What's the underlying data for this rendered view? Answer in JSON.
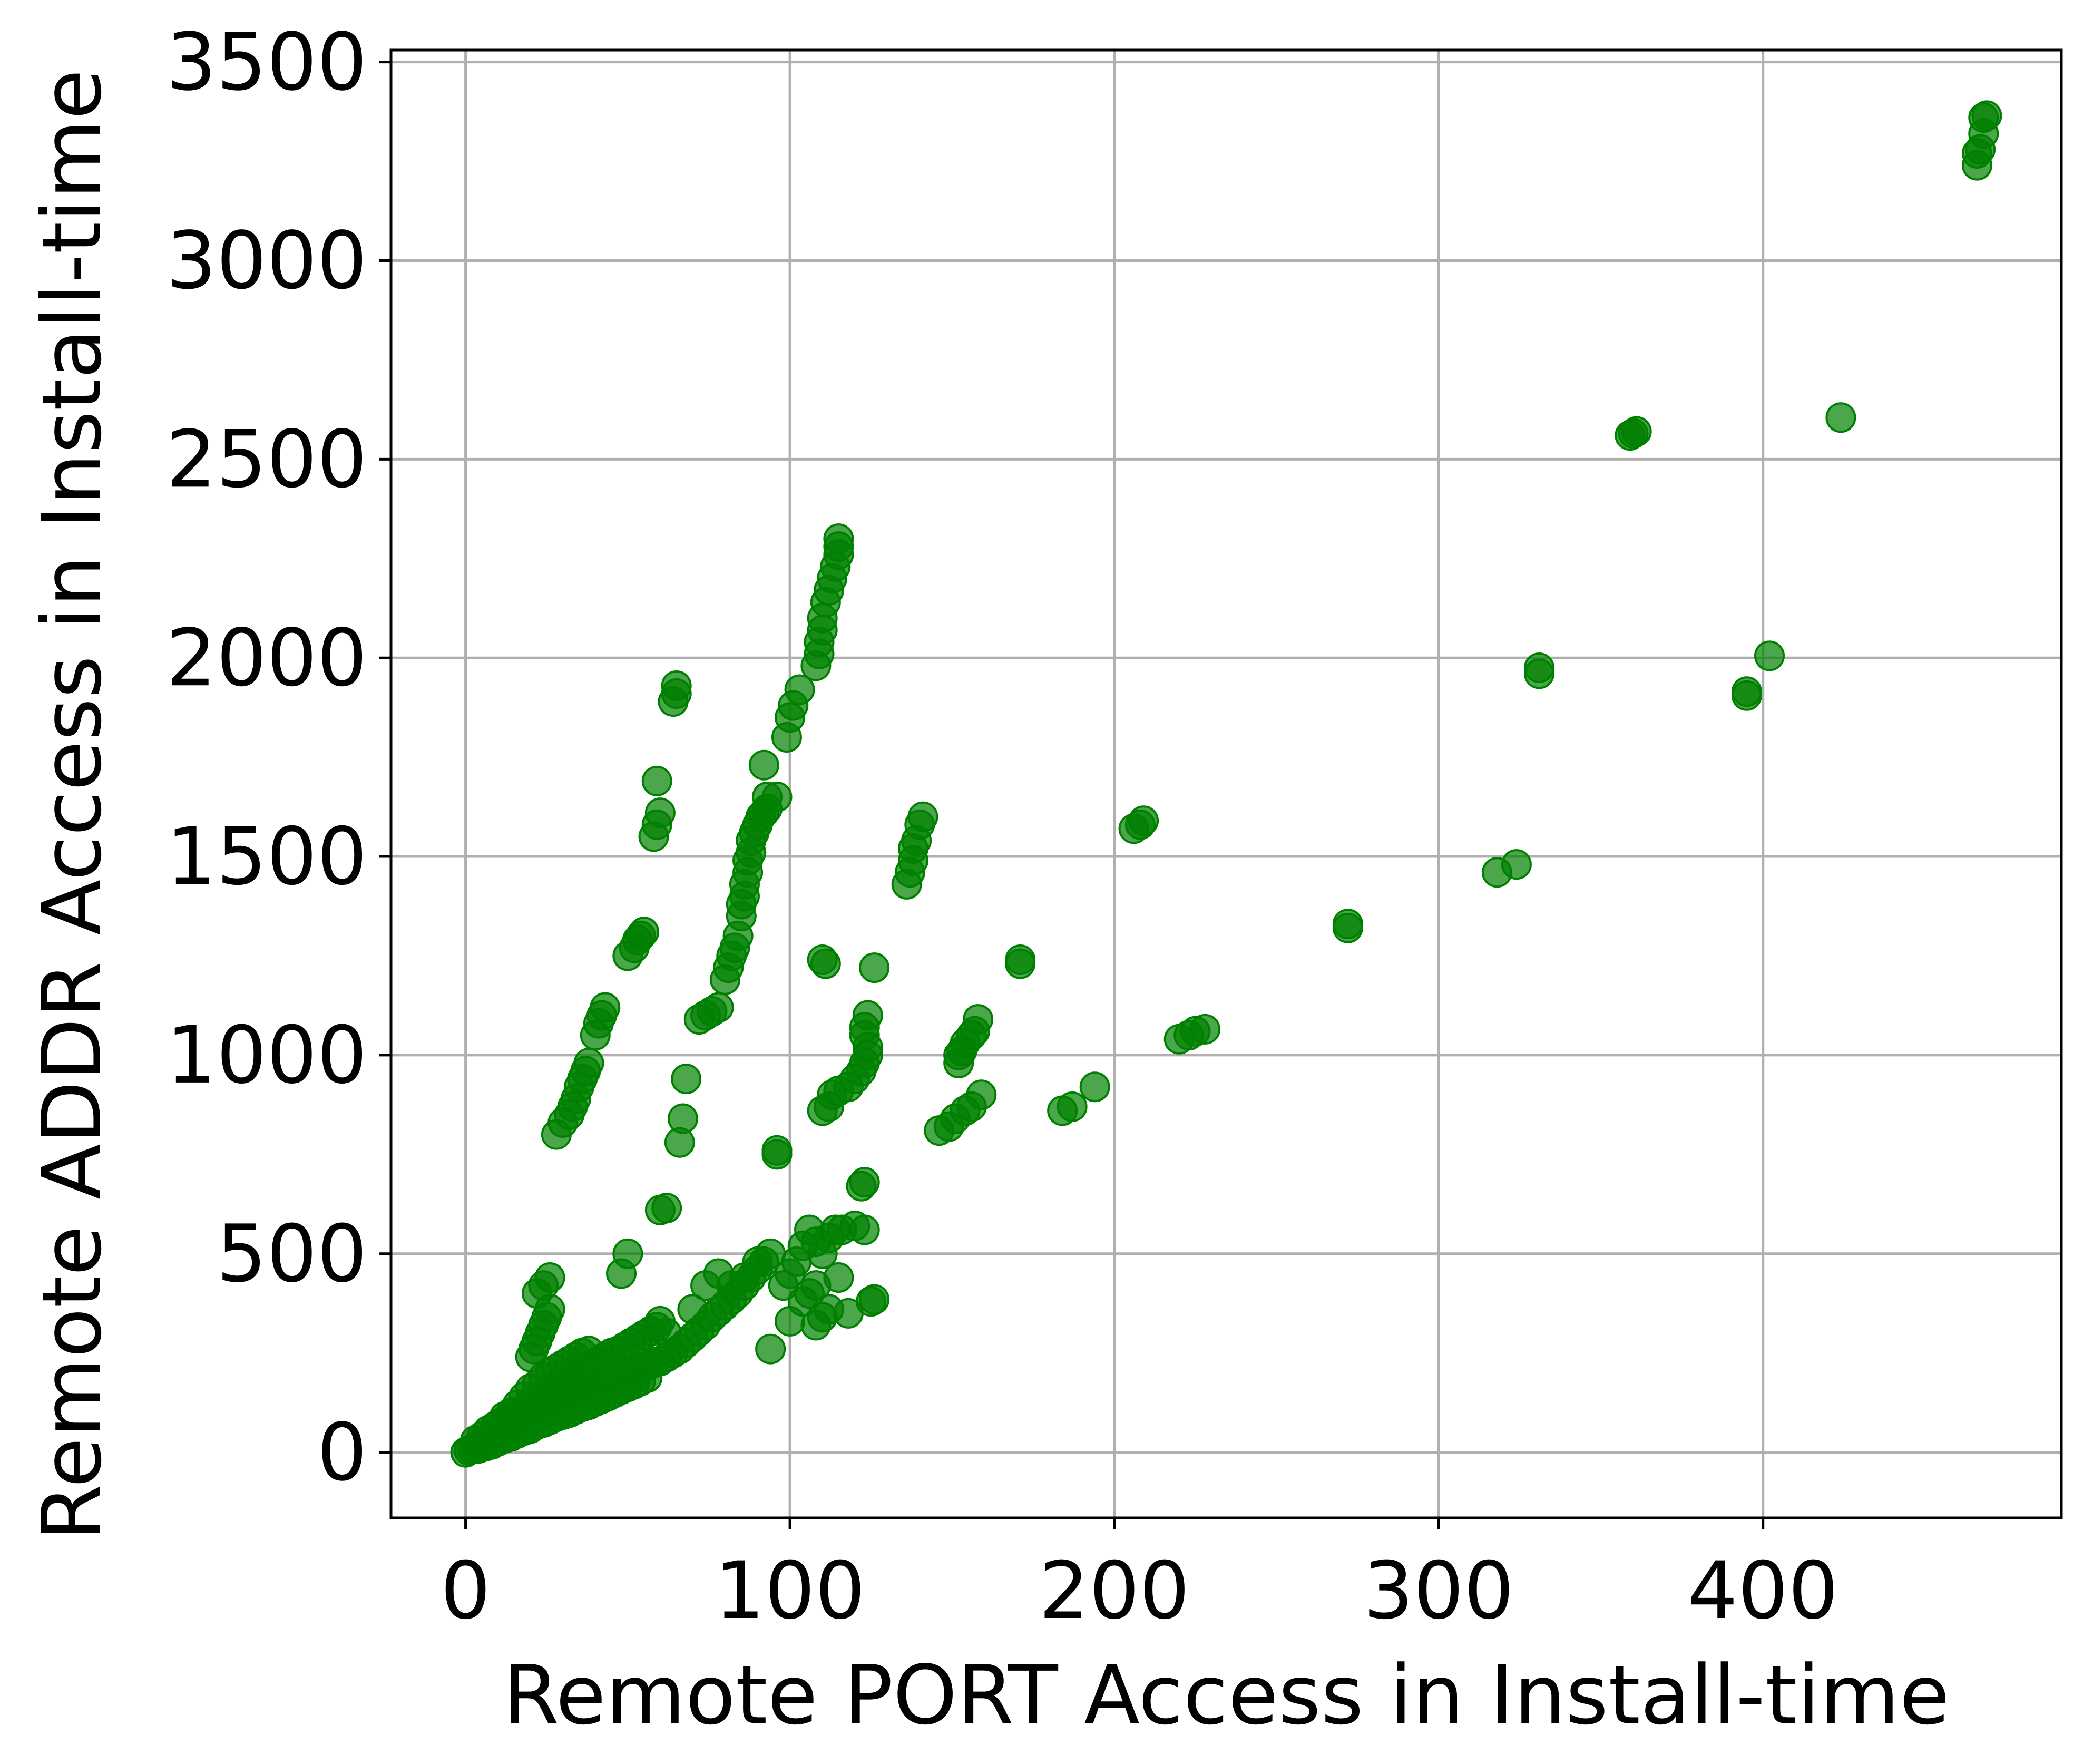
{
  "chart_data": {
    "type": "scatter",
    "title": "",
    "xlabel": "Remote PORT Access in Install-time",
    "ylabel": "Remote ADDR Access in Install-time",
    "xlim": [
      -23,
      492
    ],
    "ylim": [
      -165,
      3530
    ],
    "xticks": [
      0,
      100,
      200,
      300,
      400
    ],
    "yticks": [
      0,
      500,
      1000,
      1500,
      2000,
      2500,
      3000,
      3500
    ],
    "grid": true,
    "legend": "none",
    "marker_color": "#008000",
    "marker_opacity": 0.7,
    "series": [
      {
        "points": [
          [
            0,
            0
          ],
          [
            1,
            5
          ],
          [
            2,
            8
          ],
          [
            3,
            14
          ],
          [
            4,
            18
          ],
          [
            5,
            25
          ],
          [
            6,
            30
          ],
          [
            7,
            32
          ],
          [
            8,
            40
          ],
          [
            9,
            45
          ],
          [
            10,
            50
          ],
          [
            11,
            55
          ],
          [
            12,
            60
          ],
          [
            13,
            62
          ],
          [
            14,
            68
          ],
          [
            15,
            72
          ],
          [
            16,
            80
          ],
          [
            17,
            84
          ],
          [
            18,
            90
          ],
          [
            19,
            95
          ],
          [
            20,
            98
          ],
          [
            21,
            102
          ],
          [
            22,
            108
          ],
          [
            23,
            112
          ],
          [
            24,
            115
          ],
          [
            25,
            120
          ],
          [
            26,
            124
          ],
          [
            27,
            128
          ],
          [
            28,
            132
          ],
          [
            29,
            135
          ],
          [
            30,
            140
          ],
          [
            31,
            142
          ],
          [
            32,
            148
          ],
          [
            33,
            150
          ],
          [
            34,
            155
          ],
          [
            35,
            158
          ],
          [
            36,
            162
          ],
          [
            37,
            165
          ],
          [
            38,
            170
          ],
          [
            39,
            172
          ],
          [
            40,
            175
          ],
          [
            42,
            180
          ],
          [
            44,
            185
          ],
          [
            46,
            190
          ],
          [
            48,
            195
          ],
          [
            50,
            200
          ],
          [
            52,
            205
          ],
          [
            54,
            212
          ],
          [
            56,
            218
          ],
          [
            58,
            225
          ],
          [
            60,
            230
          ],
          [
            62,
            240
          ],
          [
            64,
            250
          ],
          [
            66,
            260
          ],
          [
            68,
            275
          ],
          [
            70,
            290
          ],
          [
            72,
            305
          ],
          [
            74,
            320
          ],
          [
            76,
            340
          ],
          [
            78,
            355
          ],
          [
            80,
            370
          ],
          [
            82,
            385
          ],
          [
            84,
            400
          ],
          [
            86,
            420
          ],
          [
            88,
            440
          ],
          [
            90,
            460
          ],
          [
            92,
            480
          ],
          [
            3,
            30
          ],
          [
            5,
            40
          ],
          [
            7,
            55
          ],
          [
            9,
            65
          ],
          [
            11,
            75
          ],
          [
            13,
            85
          ],
          [
            15,
            95
          ],
          [
            17,
            105
          ],
          [
            19,
            115
          ],
          [
            21,
            125
          ],
          [
            23,
            140
          ],
          [
            25,
            150
          ],
          [
            27,
            160
          ],
          [
            29,
            170
          ],
          [
            31,
            180
          ],
          [
            33,
            190
          ],
          [
            35,
            200
          ],
          [
            37,
            210
          ],
          [
            39,
            220
          ],
          [
            41,
            230
          ],
          [
            43,
            240
          ],
          [
            45,
            250
          ],
          [
            47,
            255
          ],
          [
            49,
            265
          ],
          [
            51,
            275
          ],
          [
            53,
            285
          ],
          [
            55,
            295
          ],
          [
            57,
            305
          ],
          [
            59,
            315
          ],
          [
            4,
            10
          ],
          [
            6,
            15
          ],
          [
            8,
            20
          ],
          [
            10,
            28
          ],
          [
            12,
            35
          ],
          [
            14,
            40
          ],
          [
            16,
            48
          ],
          [
            18,
            55
          ],
          [
            20,
            60
          ],
          [
            22,
            70
          ],
          [
            24,
            75
          ],
          [
            26,
            82
          ],
          [
            28,
            90
          ],
          [
            30,
            95
          ],
          [
            32,
            100
          ],
          [
            34,
            108
          ],
          [
            36,
            115
          ],
          [
            38,
            120
          ],
          [
            40,
            128
          ],
          [
            42,
            135
          ],
          [
            44,
            142
          ],
          [
            46,
            150
          ],
          [
            48,
            158
          ],
          [
            50,
            165
          ],
          [
            52,
            172
          ],
          [
            54,
            180
          ],
          [
            56,
            188
          ],
          [
            10,
            70
          ],
          [
            12,
            90
          ],
          [
            14,
            100
          ],
          [
            16,
            120
          ],
          [
            18,
            140
          ],
          [
            20,
            160
          ],
          [
            22,
            170
          ],
          [
            24,
            190
          ],
          [
            26,
            200
          ],
          [
            28,
            210
          ],
          [
            30,
            220
          ],
          [
            32,
            230
          ],
          [
            34,
            240
          ],
          [
            36,
            250
          ],
          [
            38,
            255
          ],
          [
            20,
            240
          ],
          [
            21,
            260
          ],
          [
            22,
            280
          ],
          [
            23,
            300
          ],
          [
            24,
            320
          ],
          [
            25,
            340
          ],
          [
            26,
            360
          ],
          [
            22,
            400
          ],
          [
            24,
            420
          ],
          [
            26,
            440
          ],
          [
            48,
            450
          ],
          [
            50,
            500
          ],
          [
            60,
            330
          ],
          [
            62,
            300
          ],
          [
            70,
            360
          ],
          [
            74,
            420
          ],
          [
            78,
            450
          ],
          [
            82,
            420
          ],
          [
            86,
            440
          ],
          [
            90,
            480
          ],
          [
            94,
            500
          ],
          [
            98,
            420
          ],
          [
            100,
            450
          ],
          [
            102,
            480
          ],
          [
            104,
            520
          ],
          [
            106,
            560
          ],
          [
            108,
            530
          ],
          [
            110,
            500
          ],
          [
            112,
            540
          ],
          [
            114,
            560
          ],
          [
            116,
            560
          ],
          [
            120,
            570
          ],
          [
            104,
            380
          ],
          [
            106,
            400
          ],
          [
            108,
            420
          ],
          [
            110,
            340
          ],
          [
            112,
            360
          ],
          [
            115,
            440
          ],
          [
            118,
            350
          ],
          [
            125,
            380
          ],
          [
            126,
            385
          ],
          [
            94,
            260
          ],
          [
            100,
            330
          ],
          [
            108,
            320
          ],
          [
            28,
            800
          ],
          [
            30,
            830
          ],
          [
            32,
            850
          ],
          [
            33,
            870
          ],
          [
            34,
            890
          ],
          [
            35,
            920
          ],
          [
            36,
            940
          ],
          [
            37,
            960
          ],
          [
            38,
            980
          ],
          [
            40,
            1050
          ],
          [
            41,
            1080
          ],
          [
            42,
            1100
          ],
          [
            43,
            1120
          ],
          [
            50,
            1250
          ],
          [
            52,
            1270
          ],
          [
            53,
            1290
          ],
          [
            54,
            1300
          ],
          [
            55,
            1310
          ],
          [
            58,
            1550
          ],
          [
            59,
            1580
          ],
          [
            60,
            1610
          ],
          [
            59,
            1690
          ],
          [
            64,
            1890
          ],
          [
            65,
            1910
          ],
          [
            65,
            1930
          ],
          [
            60,
            610
          ],
          [
            62,
            615
          ],
          [
            66,
            780
          ],
          [
            67,
            840
          ],
          [
            68,
            940
          ],
          [
            72,
            1090
          ],
          [
            74,
            1100
          ],
          [
            76,
            1110
          ],
          [
            78,
            1120
          ],
          [
            80,
            1190
          ],
          [
            81,
            1220
          ],
          [
            82,
            1250
          ],
          [
            83,
            1270
          ],
          [
            84,
            1300
          ],
          [
            85,
            1350
          ],
          [
            85,
            1380
          ],
          [
            86,
            1400
          ],
          [
            86,
            1430
          ],
          [
            87,
            1460
          ],
          [
            87,
            1490
          ],
          [
            88,
            1510
          ],
          [
            88,
            1540
          ],
          [
            89,
            1560
          ],
          [
            90,
            1580
          ],
          [
            91,
            1600
          ],
          [
            92,
            1610
          ],
          [
            93,
            1620
          ],
          [
            93,
            1650
          ],
          [
            92,
            1730
          ],
          [
            96,
            1650
          ],
          [
            99,
            1800
          ],
          [
            100,
            1850
          ],
          [
            101,
            1880
          ],
          [
            103,
            1920
          ],
          [
            108,
            1980
          ],
          [
            109,
            2010
          ],
          [
            109,
            2040
          ],
          [
            110,
            2070
          ],
          [
            110,
            2100
          ],
          [
            111,
            2140
          ],
          [
            112,
            2170
          ],
          [
            113,
            2200
          ],
          [
            114,
            2230
          ],
          [
            115,
            2260
          ],
          [
            115,
            2280
          ],
          [
            115,
            2300
          ],
          [
            96,
            760
          ],
          [
            96,
            750
          ],
          [
            110,
            860
          ],
          [
            112,
            870
          ],
          [
            113,
            900
          ],
          [
            115,
            910
          ],
          [
            118,
            920
          ],
          [
            120,
            940
          ],
          [
            122,
            960
          ],
          [
            123,
            980
          ],
          [
            124,
            1000
          ],
          [
            124,
            1020
          ],
          [
            123,
            1050
          ],
          [
            123,
            1070
          ],
          [
            124,
            1100
          ],
          [
            110,
            1240
          ],
          [
            111,
            1230
          ],
          [
            126,
            1220
          ],
          [
            122,
            670
          ],
          [
            123,
            680
          ],
          [
            123,
            560
          ],
          [
            136,
            1430
          ],
          [
            137,
            1460
          ],
          [
            138,
            1490
          ],
          [
            138,
            1520
          ],
          [
            139,
            1540
          ],
          [
            140,
            1580
          ],
          [
            141,
            1600
          ],
          [
            146,
            810
          ],
          [
            149,
            820
          ],
          [
            151,
            840
          ],
          [
            154,
            860
          ],
          [
            156,
            870
          ],
          [
            159,
            900
          ],
          [
            152,
            980
          ],
          [
            152,
            1000
          ],
          [
            153,
            1010
          ],
          [
            154,
            1030
          ],
          [
            156,
            1050
          ],
          [
            157,
            1060
          ],
          [
            158,
            1090
          ],
          [
            171,
            1230
          ],
          [
            171,
            1240
          ],
          [
            184,
            860
          ],
          [
            187,
            870
          ],
          [
            194,
            920
          ],
          [
            206,
            1570
          ],
          [
            208,
            1580
          ],
          [
            209,
            1590
          ],
          [
            220,
            1040
          ],
          [
            223,
            1050
          ],
          [
            225,
            1060
          ],
          [
            228,
            1065
          ],
          [
            272,
            1320
          ],
          [
            272,
            1330
          ],
          [
            318,
            1460
          ],
          [
            324,
            1480
          ],
          [
            331,
            1960
          ],
          [
            331,
            1975
          ],
          [
            359,
            2560
          ],
          [
            360,
            2565
          ],
          [
            361,
            2570
          ],
          [
            395,
            1905
          ],
          [
            395,
            1915
          ],
          [
            402,
            2005
          ],
          [
            424,
            2605
          ],
          [
            466,
            3240
          ],
          [
            466,
            3270
          ],
          [
            467,
            3280
          ],
          [
            468,
            3320
          ],
          [
            468,
            3360
          ],
          [
            469,
            3365
          ]
        ]
      }
    ]
  }
}
